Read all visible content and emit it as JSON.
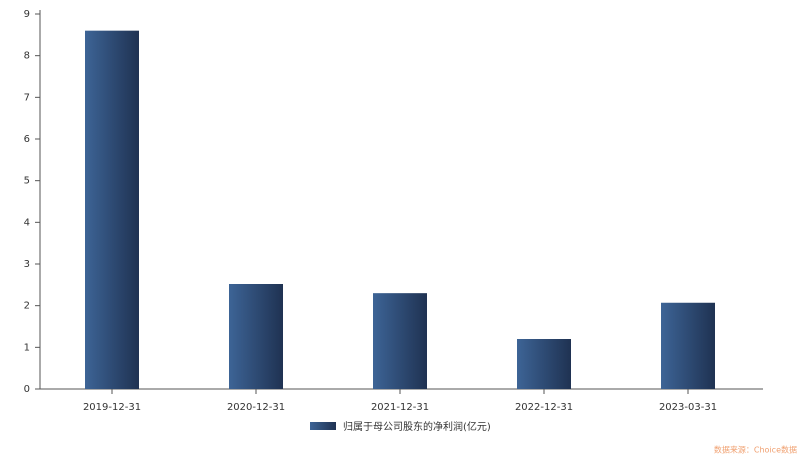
{
  "chart_data": {
    "type": "bar",
    "categories": [
      "2019-12-31",
      "2020-12-31",
      "2021-12-31",
      "2022-12-31",
      "2023-03-31"
    ],
    "series": [
      {
        "name": "归属于母公司股东的净利润(亿元)",
        "colors": [
          "#3d6496",
          "#1f3252"
        ],
        "values": [
          8.6,
          2.52,
          2.3,
          1.2,
          2.07
        ]
      }
    ],
    "ylim": [
      0,
      9
    ],
    "yticks": [
      0,
      1,
      2,
      3,
      4,
      5,
      6,
      7,
      8,
      9
    ],
    "source": "数据来源：Choice数据"
  }
}
